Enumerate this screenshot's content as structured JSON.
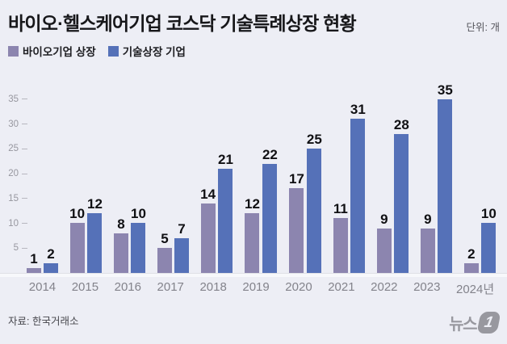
{
  "header": {
    "title": "바이오·헬스케어기업 코스닥 기술특례상장 현황",
    "unit_label": "단위: 개"
  },
  "chart_data": {
    "type": "bar",
    "title": "바이오·헬스케어기업 코스닥 기술특례상장 현황",
    "unit": "개",
    "categories": [
      "2014",
      "2015",
      "2016",
      "2017",
      "2018",
      "2019",
      "2020",
      "2021",
      "2022",
      "2023",
      "2024년"
    ],
    "series": [
      {
        "name": "바이오기업 상장",
        "color": "#8c85af",
        "values": [
          1,
          10,
          8,
          5,
          14,
          12,
          17,
          11,
          9,
          9,
          2
        ]
      },
      {
        "name": "기술상장 기업",
        "color": "#5571b8",
        "values": [
          2,
          12,
          10,
          7,
          21,
          22,
          25,
          31,
          28,
          35,
          10
        ]
      }
    ],
    "yticks": [
      5,
      10,
      15,
      20,
      25,
      30,
      35
    ],
    "ylim": [
      0,
      40
    ],
    "grid": false,
    "data_labels": true,
    "legend_position": "top-left"
  },
  "footer": {
    "source": "자료: 한국거래소",
    "logo_text": "뉴스",
    "logo_numeral": "1"
  },
  "colors": {
    "background": "#edeef5",
    "bar_purple": "#8c85af",
    "bar_blue": "#5571b8",
    "value_label": "#101013",
    "year_label": "#83838b",
    "ytick_label": "#97979f",
    "baseline": "#f7f8fb"
  }
}
